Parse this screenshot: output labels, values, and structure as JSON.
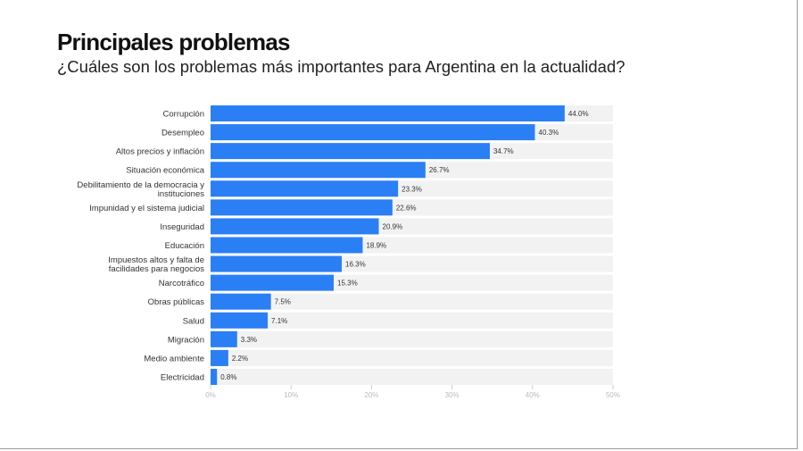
{
  "title": "Principales problemas",
  "subtitle": "¿Cuáles son los problemas más importantes para Argentina en la actualidad?",
  "chart_data": {
    "type": "bar",
    "orientation": "horizontal",
    "categories": [
      "Corrupción",
      "Desempleo",
      "Altos precios y inflación",
      "Situación económica",
      "Debilitamiento de la democracia y instituciones",
      "Impunidad y el sistema judicial",
      "Inseguridad",
      "Educación",
      "Impuestos altos y falta de facilidades para negocios",
      "Narcotráfico",
      "Obras públicas",
      "Salud",
      "Migración",
      "Medio ambiente",
      "Electricidad"
    ],
    "values": [
      44.0,
      40.3,
      34.7,
      26.7,
      23.3,
      22.6,
      20.9,
      18.9,
      16.3,
      15.3,
      7.5,
      7.1,
      3.3,
      2.2,
      0.8
    ],
    "data_labels": [
      "44.0%",
      "40.3%",
      "34.7%",
      "26.7%",
      "23.3%",
      "22.6%",
      "20.9%",
      "18.9%",
      "16.3%",
      "15.3%",
      "7.5%",
      "7.1%",
      "3.3%",
      "2.2%",
      "0.8%"
    ],
    "xlim": [
      0,
      50
    ],
    "x_ticks": [
      "0%",
      "10%",
      "20%",
      "30%",
      "40%",
      "50%"
    ],
    "bar_color": "#2a7ff5",
    "track_color": "#f2f2f2",
    "grid": false
  }
}
